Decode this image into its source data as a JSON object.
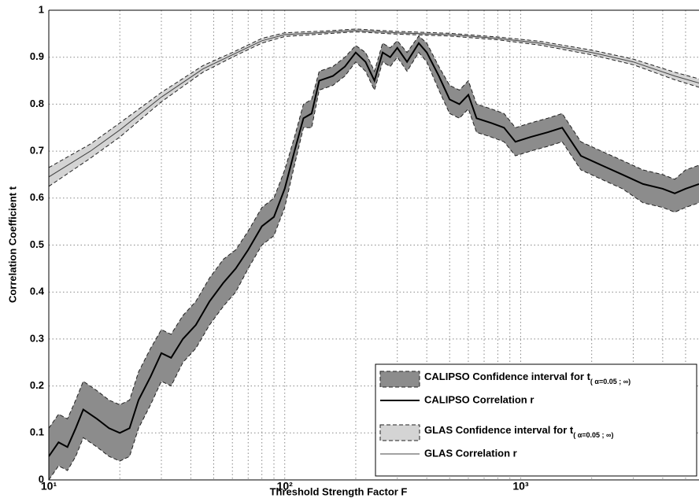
{
  "chart_data": {
    "type": "band-line",
    "xlabel": "Threshold Strength Factor F",
    "ylabel": "Correlation Coefficient t",
    "xscale": "log",
    "xlim": [
      10,
      5700
    ],
    "xticks": [
      {
        "value": 10,
        "label": "10¹"
      },
      {
        "value": 100,
        "label": "10²"
      },
      {
        "value": 1000,
        "label": "10³"
      }
    ],
    "xminorticks": [
      20,
      30,
      40,
      50,
      60,
      70,
      80,
      90,
      200,
      300,
      400,
      500,
      600,
      700,
      800,
      900,
      2000,
      3000,
      4000,
      5000
    ],
    "ylim": [
      0,
      1
    ],
    "yticks": [
      0,
      0.1,
      0.2,
      0.3,
      0.4,
      0.5,
      0.6,
      0.7,
      0.8,
      0.9,
      1
    ],
    "grid": true,
    "legend": "lower right",
    "series": [
      {
        "name": "CALIPSO Correlation r",
        "band_name": "CALIPSO Confidence interval for t",
        "band_subscript": "( α=0.05 ; ∞)",
        "color": "#000000",
        "band_color": "#8c8c8c",
        "line_width": 2,
        "x": [
          10,
          11,
          12,
          13,
          14,
          16,
          18,
          20,
          22,
          24,
          27,
          30,
          33,
          37,
          42,
          48,
          55,
          62,
          70,
          80,
          90,
          100,
          110,
          120,
          130,
          140,
          160,
          180,
          200,
          220,
          240,
          260,
          280,
          300,
          330,
          370,
          400,
          450,
          500,
          550,
          600,
          650,
          750,
          850,
          950,
          1100,
          1300,
          1500,
          1800,
          2200,
          2700,
          3300,
          4000,
          4500,
          5000,
          5700
        ],
        "values": [
          0.05,
          0.08,
          0.07,
          0.11,
          0.15,
          0.13,
          0.11,
          0.1,
          0.11,
          0.17,
          0.22,
          0.27,
          0.26,
          0.3,
          0.33,
          0.38,
          0.42,
          0.45,
          0.49,
          0.54,
          0.56,
          0.62,
          0.7,
          0.77,
          0.78,
          0.85,
          0.86,
          0.88,
          0.91,
          0.89,
          0.85,
          0.91,
          0.9,
          0.92,
          0.89,
          0.93,
          0.91,
          0.86,
          0.81,
          0.8,
          0.82,
          0.77,
          0.76,
          0.75,
          0.72,
          0.73,
          0.74,
          0.75,
          0.69,
          0.67,
          0.65,
          0.63,
          0.62,
          0.61,
          0.62,
          0.63
        ],
        "lower": [
          0.0,
          0.03,
          0.02,
          0.05,
          0.09,
          0.07,
          0.05,
          0.04,
          0.05,
          0.11,
          0.16,
          0.21,
          0.2,
          0.25,
          0.28,
          0.33,
          0.37,
          0.4,
          0.45,
          0.5,
          0.52,
          0.58,
          0.67,
          0.75,
          0.75,
          0.83,
          0.84,
          0.86,
          0.89,
          0.87,
          0.83,
          0.89,
          0.88,
          0.9,
          0.87,
          0.91,
          0.89,
          0.83,
          0.78,
          0.77,
          0.79,
          0.74,
          0.73,
          0.72,
          0.69,
          0.7,
          0.71,
          0.72,
          0.66,
          0.64,
          0.62,
          0.59,
          0.58,
          0.57,
          0.58,
          0.59
        ],
        "upper": [
          0.11,
          0.14,
          0.13,
          0.17,
          0.21,
          0.19,
          0.17,
          0.16,
          0.17,
          0.23,
          0.28,
          0.32,
          0.31,
          0.35,
          0.38,
          0.43,
          0.47,
          0.49,
          0.53,
          0.58,
          0.6,
          0.66,
          0.73,
          0.8,
          0.81,
          0.87,
          0.88,
          0.9,
          0.925,
          0.91,
          0.87,
          0.93,
          0.92,
          0.935,
          0.91,
          0.945,
          0.93,
          0.88,
          0.84,
          0.83,
          0.85,
          0.8,
          0.79,
          0.78,
          0.75,
          0.76,
          0.77,
          0.78,
          0.72,
          0.7,
          0.68,
          0.66,
          0.65,
          0.64,
          0.66,
          0.67
        ]
      },
      {
        "name": "GLAS Correlation r",
        "band_name": "GLAS Confidence interval for t",
        "band_subscript": "( α=0.05 ; ∞)",
        "color": "#444444",
        "band_color": "#d4d4d4",
        "line_width": 1,
        "x": [
          10,
          15,
          20,
          30,
          45,
          60,
          80,
          100,
          150,
          200,
          300,
          500,
          800,
          1200,
          2000,
          3000,
          4500,
          5700
        ],
        "values": [
          0.645,
          0.7,
          0.745,
          0.815,
          0.875,
          0.905,
          0.935,
          0.948,
          0.953,
          0.957,
          0.952,
          0.948,
          0.94,
          0.93,
          0.91,
          0.89,
          0.86,
          0.845
        ],
        "lower": [
          0.625,
          0.685,
          0.73,
          0.805,
          0.868,
          0.9,
          0.93,
          0.944,
          0.95,
          0.954,
          0.949,
          0.945,
          0.937,
          0.926,
          0.905,
          0.884,
          0.852,
          0.836
        ],
        "upper": [
          0.665,
          0.715,
          0.76,
          0.825,
          0.882,
          0.91,
          0.94,
          0.952,
          0.956,
          0.96,
          0.955,
          0.951,
          0.943,
          0.934,
          0.915,
          0.896,
          0.868,
          0.854
        ]
      }
    ]
  }
}
